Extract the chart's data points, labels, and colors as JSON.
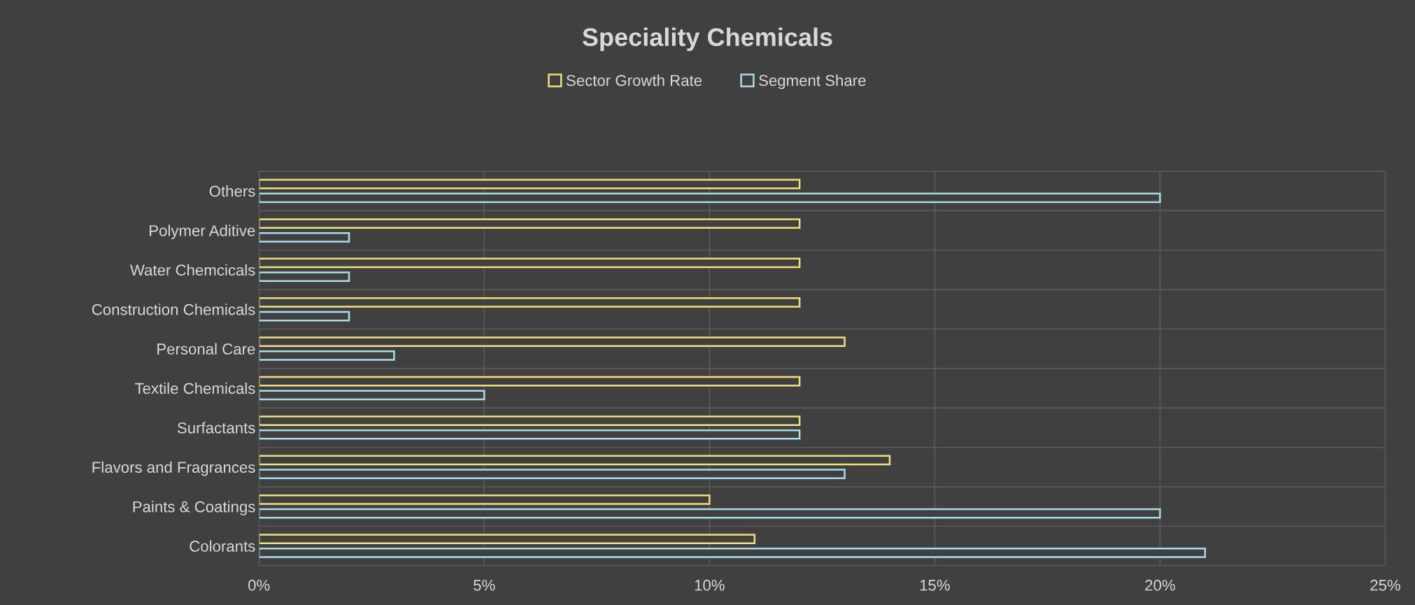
{
  "chart_data": {
    "type": "bar",
    "orientation": "horizontal",
    "title": "Speciality Chemicals",
    "categories": [
      "Others",
      "Polymer Aditive",
      "Water Chemcicals",
      "Construction Chemicals",
      "Personal Care",
      "Textile Chemicals",
      "Surfactants",
      "Flavors and Fragrances",
      "Paints & Coatings",
      "Colorants"
    ],
    "series": [
      {
        "name": "Sector Growth Rate",
        "color": "#f2e07a",
        "values": [
          12,
          12,
          12,
          12,
          13,
          12,
          12,
          14,
          10,
          11
        ]
      },
      {
        "name": "Segment Share",
        "color": "#a9dde8",
        "values": [
          20,
          2,
          2,
          2,
          3,
          5,
          12,
          13,
          20,
          21
        ]
      }
    ],
    "xlim": [
      0,
      25
    ],
    "xticks": [
      {
        "value": 0,
        "label": "0%"
      },
      {
        "value": 5,
        "label": "5%"
      },
      {
        "value": 10,
        "label": "10%"
      },
      {
        "value": 15,
        "label": "15%"
      },
      {
        "value": 20,
        "label": "20%"
      },
      {
        "value": 25,
        "label": "25%"
      }
    ],
    "grid": true,
    "legend": "top"
  }
}
